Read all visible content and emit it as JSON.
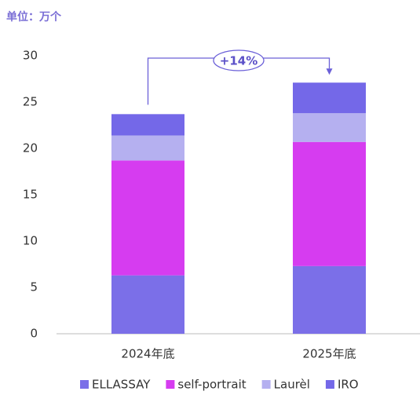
{
  "chart_data": {
    "type": "bar",
    "stacked": true,
    "unit_label": "单位：万个",
    "annotation": "+14%",
    "categories": [
      "2024年底",
      "2025年底"
    ],
    "series": [
      {
        "name": "ELLASSAY",
        "color": "#7b6fe8",
        "values": [
          6.3,
          7.3
        ]
      },
      {
        "name": "self-portrait",
        "color": "#d63cf0",
        "values": [
          12.4,
          13.4
        ]
      },
      {
        "name": "Laurèl",
        "color": "#b5b0f0",
        "values": [
          2.7,
          3.1
        ]
      },
      {
        "name": "IRO",
        "color": "#7468e8",
        "values": [
          2.3,
          3.3
        ]
      }
    ],
    "ylim": [
      0,
      30
    ],
    "yticks": [
      0,
      5,
      10,
      15,
      20,
      25,
      30
    ],
    "grid": false,
    "legend": "bottom"
  }
}
